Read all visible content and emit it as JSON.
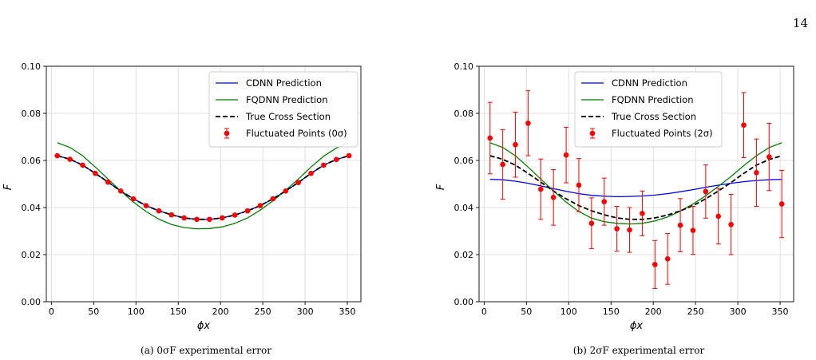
{
  "page_number": "14",
  "chart_data": [
    {
      "type": "line",
      "caption": "(a) 0σF experimental error",
      "xlabel": "ϕx",
      "ylabel": "F",
      "xlim": [
        -6,
        366
      ],
      "ylim": [
        0.0,
        0.1
      ],
      "xticks": [
        0,
        50,
        100,
        150,
        200,
        250,
        300,
        350
      ],
      "yticks": [
        0.0,
        0.02,
        0.04,
        0.06,
        0.08,
        0.1
      ],
      "ytick_labels": [
        "0.00",
        "0.02",
        "0.04",
        "0.06",
        "0.08",
        "0.10"
      ],
      "grid": true,
      "legend_position": "top-right",
      "x": [
        7,
        22,
        37,
        52,
        67,
        82,
        97,
        112,
        127,
        142,
        157,
        172,
        187,
        202,
        217,
        232,
        247,
        262,
        277,
        292,
        307,
        322,
        337,
        352
      ],
      "series": [
        {
          "name": "CDNN Prediction",
          "kind": "line",
          "color": "#0000ff",
          "values": [
            0.062,
            0.0605,
            0.058,
            0.0545,
            0.0508,
            0.047,
            0.0437,
            0.0408,
            0.0386,
            0.0369,
            0.0356,
            0.035,
            0.035,
            0.0356,
            0.0368,
            0.0386,
            0.0408,
            0.0437,
            0.047,
            0.0506,
            0.0545,
            0.058,
            0.0604,
            0.062
          ]
        },
        {
          "name": "FQDNN Prediction",
          "kind": "line",
          "color": "#008000",
          "values": [
            0.0675,
            0.0655,
            0.062,
            0.0572,
            0.0521,
            0.047,
            0.0423,
            0.0383,
            0.0351,
            0.0328,
            0.0315,
            0.031,
            0.0311,
            0.0318,
            0.0333,
            0.0356,
            0.0389,
            0.0428,
            0.0473,
            0.0521,
            0.0572,
            0.0618,
            0.0653,
            0.0675
          ]
        },
        {
          "name": "True Cross Section",
          "kind": "dashed",
          "color": "#000000",
          "values": [
            0.062,
            0.0605,
            0.058,
            0.0545,
            0.0508,
            0.047,
            0.0437,
            0.0408,
            0.0386,
            0.0369,
            0.0356,
            0.035,
            0.035,
            0.0356,
            0.0368,
            0.0386,
            0.0408,
            0.0437,
            0.047,
            0.0506,
            0.0545,
            0.058,
            0.0604,
            0.062
          ]
        },
        {
          "name": "Fluctuated Points (0σ)",
          "kind": "errorbar",
          "color": "#ff0000",
          "values": [
            0.062,
            0.0605,
            0.058,
            0.0545,
            0.0508,
            0.047,
            0.0437,
            0.0408,
            0.0386,
            0.0369,
            0.0356,
            0.035,
            0.035,
            0.0356,
            0.0368,
            0.0386,
            0.0408,
            0.0437,
            0.047,
            0.0506,
            0.0545,
            0.058,
            0.0604,
            0.062
          ],
          "errors": [
            0,
            0,
            0,
            0,
            0,
            0,
            0,
            0,
            0,
            0,
            0,
            0,
            0,
            0,
            0,
            0,
            0,
            0,
            0,
            0,
            0,
            0,
            0,
            0
          ]
        }
      ]
    },
    {
      "type": "line",
      "caption": "(b) 2σF experimental error",
      "xlabel": "ϕx",
      "ylabel": "F",
      "xlim": [
        -6,
        366
      ],
      "ylim": [
        0.0,
        0.1
      ],
      "xticks": [
        0,
        50,
        100,
        150,
        200,
        250,
        300,
        350
      ],
      "yticks": [
        0.0,
        0.02,
        0.04,
        0.06,
        0.08,
        0.1
      ],
      "ytick_labels": [
        "0.00",
        "0.02",
        "0.04",
        "0.06",
        "0.08",
        "0.10"
      ],
      "grid": true,
      "legend_position": "top-center",
      "x": [
        7,
        22,
        37,
        52,
        67,
        82,
        97,
        112,
        127,
        142,
        157,
        172,
        187,
        202,
        217,
        232,
        247,
        262,
        277,
        292,
        307,
        322,
        337,
        352
      ],
      "series": [
        {
          "name": "CDNN Prediction",
          "kind": "line",
          "color": "#0000ff",
          "values": [
            0.052,
            0.0518,
            0.0512,
            0.0503,
            0.0492,
            0.048,
            0.0469,
            0.0459,
            0.0452,
            0.0448,
            0.0446,
            0.0447,
            0.0449,
            0.0453,
            0.0459,
            0.0467,
            0.0476,
            0.0486,
            0.0495,
            0.0503,
            0.051,
            0.0515,
            0.0518,
            0.052
          ]
        },
        {
          "name": "FQDNN Prediction",
          "kind": "line",
          "color": "#008000",
          "values": [
            0.0675,
            0.0655,
            0.062,
            0.0572,
            0.0521,
            0.047,
            0.0423,
            0.0383,
            0.0355,
            0.034,
            0.0333,
            0.033,
            0.0333,
            0.0343,
            0.036,
            0.0385,
            0.0415,
            0.045,
            0.049,
            0.0532,
            0.0578,
            0.062,
            0.0655,
            0.0675
          ]
        },
        {
          "name": "True Cross Section",
          "kind": "dashed",
          "color": "#000000",
          "values": [
            0.062,
            0.0605,
            0.058,
            0.0545,
            0.0508,
            0.047,
            0.0437,
            0.0408,
            0.0386,
            0.0369,
            0.0356,
            0.035,
            0.035,
            0.0356,
            0.0368,
            0.0386,
            0.0408,
            0.0437,
            0.047,
            0.0506,
            0.0545,
            0.058,
            0.0604,
            0.062
          ]
        },
        {
          "name": "Fluctuated Points (2σ)",
          "kind": "errorbar",
          "color": "#ff0000",
          "values": [
            0.0695,
            0.0583,
            0.0667,
            0.0758,
            0.0478,
            0.0443,
            0.0623,
            0.0495,
            0.0333,
            0.0425,
            0.031,
            0.0305,
            0.0375,
            0.0158,
            0.0182,
            0.0325,
            0.0303,
            0.0468,
            0.0363,
            0.0328,
            0.075,
            0.0548,
            0.0615,
            0.0415
          ],
          "errors": [
            0.0152,
            0.0148,
            0.0138,
            0.0138,
            0.0128,
            0.0118,
            0.0118,
            0.0113,
            0.0108,
            0.01,
            0.0095,
            0.0095,
            0.0095,
            0.0102,
            0.0108,
            0.0113,
            0.0102,
            0.0113,
            0.0118,
            0.0128,
            0.0138,
            0.0143,
            0.0143,
            0.0143
          ]
        }
      ]
    }
  ]
}
